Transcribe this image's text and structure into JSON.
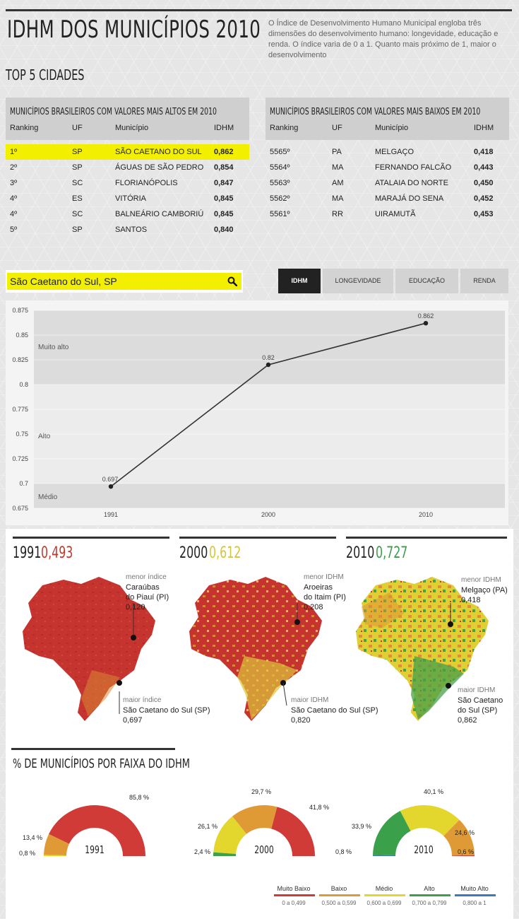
{
  "header": {
    "title": "IDHM DOS MUNICÍPIOS 2010",
    "intro": "O Índice de Desenvolvimento Humano Municipal engloba três dimensões do desenvolvimento humano: longevidade, educação e renda. O índice varia de 0 a 1. Quanto mais próximo de 1, maior o desenvolvimento"
  },
  "top5": {
    "title": "TOP 5 CIDADES",
    "columns": [
      "Ranking",
      "UF",
      "Município",
      "IDHM"
    ],
    "highest": {
      "title": "MUNICÍPIOS BRASILEIROS COM VALORES MAIS ALTOS EM 2010",
      "rows": [
        {
          "rank": "1º",
          "uf": "SP",
          "city": "SÃO CAETANO DO SUL",
          "idhm": "0,862",
          "highlight": true
        },
        {
          "rank": "2º",
          "uf": "SP",
          "city": "ÁGUAS DE SÃO PEDRO",
          "idhm": "0,854"
        },
        {
          "rank": "3º",
          "uf": "SC",
          "city": "FLORIANÓPOLIS",
          "idhm": "0,847"
        },
        {
          "rank": "4º",
          "uf": "ES",
          "city": "VITÓRIA",
          "idhm": "0,845"
        },
        {
          "rank": "4º",
          "uf": "SC",
          "city": "BALNEÁRIO CAMBORIÚ",
          "idhm": "0,845"
        },
        {
          "rank": "5º",
          "uf": "SP",
          "city": "SANTOS",
          "idhm": "0,840"
        }
      ]
    },
    "lowest": {
      "title": "MUNICÍPIOS BRASILEIROS COM VALORES MAIS BAIXOS EM 2010",
      "rows": [
        {
          "rank": "5565º",
          "uf": "PA",
          "city": "MELGAÇO",
          "idhm": "0,418"
        },
        {
          "rank": "5564º",
          "uf": "MA",
          "city": "FERNANDO FALCÃO",
          "idhm": "0,443"
        },
        {
          "rank": "5563º",
          "uf": "AM",
          "city": "ATALAIA DO NORTE",
          "idhm": "0,450"
        },
        {
          "rank": "5562º",
          "uf": "MA",
          "city": "MARAJÁ DO SENA",
          "idhm": "0,452"
        },
        {
          "rank": "5561º",
          "uf": "RR",
          "city": "UIRAMUTÃ",
          "idhm": "0,453"
        }
      ]
    }
  },
  "search": {
    "value": "São Caetano do Sul, SP",
    "placeholder": "",
    "icon": "search-icon"
  },
  "tabs": [
    {
      "label": "IDHM",
      "active": true
    },
    {
      "label": "LONGEVIDADE",
      "active": false
    },
    {
      "label": "EDUCAÇÃO",
      "active": false
    },
    {
      "label": "RENDA",
      "active": false
    }
  ],
  "maps": [
    {
      "year": "1991",
      "value": "0,493",
      "color": "#c0392b",
      "min": {
        "label": "menor índice",
        "lines": [
          "Caraúbas",
          "do Piauí (PI)",
          "0,120"
        ]
      },
      "max": {
        "label": "maior índice",
        "lines": [
          "São Caetano do Sul (SP)",
          "0,697"
        ]
      }
    },
    {
      "year": "2000",
      "value": "0,612",
      "color": "#d4c63a",
      "min": {
        "label": "menor IDHM",
        "lines": [
          "Aroeiras",
          "do Itaim (PI)",
          "0,208"
        ]
      },
      "max": {
        "label": "maior IDHM",
        "lines": [
          "São Caetano do Sul (SP)",
          "0,820"
        ]
      }
    },
    {
      "year": "2010",
      "value": "0,727",
      "color": "#3d9b4a",
      "min": {
        "label": "menor IDHM",
        "lines": [
          "Melgaço (PA)",
          "0,418"
        ]
      },
      "max": {
        "label": "maior IDHM",
        "lines": [
          "São Caetano",
          "do Sul (SP)",
          "0,862"
        ]
      }
    }
  ],
  "faixa_title": "% DE MUNICÍPIOS POR FAIXA DO IDHM",
  "chart_data": [
    {
      "type": "line",
      "x": [
        "1991",
        "2000",
        "2010"
      ],
      "y": [
        0.697,
        0.82,
        0.862
      ],
      "data_labels": [
        "0.697",
        "0.82",
        "0.862"
      ],
      "ylim": [
        0.675,
        0.875
      ],
      "yticks": [
        "0.675",
        "0.7",
        "0.725",
        "0.75",
        "0.775",
        "0.8",
        "0.825",
        "0.85",
        "0.875"
      ],
      "bands": [
        {
          "label": "Médio",
          "from": 0.675,
          "to": 0.7,
          "color": "#dcdcdc"
        },
        {
          "label": "Alto",
          "from": 0.7,
          "to": 0.8,
          "color": "#ececec"
        },
        {
          "label": "Muito alto",
          "from": 0.8,
          "to": 0.875,
          "color": "#dcdcdc"
        }
      ],
      "line_color": "#333333"
    },
    {
      "type": "pie",
      "title": "1991",
      "categories": [
        "Muito Baixo",
        "Baixo",
        "Médio",
        "Alto",
        "Muito Alto"
      ],
      "values": [
        85.8,
        13.4,
        0.8,
        0,
        0
      ],
      "labels": [
        "85,8 %",
        "13,4 %",
        "0,8 %",
        "",
        ""
      ]
    },
    {
      "type": "pie",
      "title": "2000",
      "categories": [
        "Muito Baixo",
        "Baixo",
        "Médio",
        "Alto",
        "Muito Alto"
      ],
      "values": [
        41.8,
        29.7,
        26.1,
        2.4,
        0
      ],
      "labels": [
        "41,8 %",
        "29,7 %",
        "26,1 %",
        "2,4 %",
        ""
      ]
    },
    {
      "type": "pie",
      "title": "2010",
      "categories": [
        "Muito Baixo",
        "Baixo",
        "Médio",
        "Alto",
        "Muito Alto"
      ],
      "values": [
        0.6,
        24.6,
        40.1,
        33.9,
        0.8
      ],
      "labels": [
        "0,6 %",
        "24,6 %",
        "40,1 %",
        "33,9 %",
        "0,8 %"
      ]
    }
  ],
  "legend": [
    {
      "label": "Muito Baixo",
      "range": "0 a 0,499",
      "color": "#d03a37"
    },
    {
      "label": "Baixo",
      "range": "0,500 a 0,599",
      "color": "#e09a35"
    },
    {
      "label": "Médio",
      "range": "0,600 a 0,699",
      "color": "#e3d72e"
    },
    {
      "label": "Alto",
      "range": "0,700 a 0,799",
      "color": "#3aa14a"
    },
    {
      "label": "Muito Alto",
      "range": "0,800 a 1",
      "color": "#3a78c2"
    }
  ]
}
